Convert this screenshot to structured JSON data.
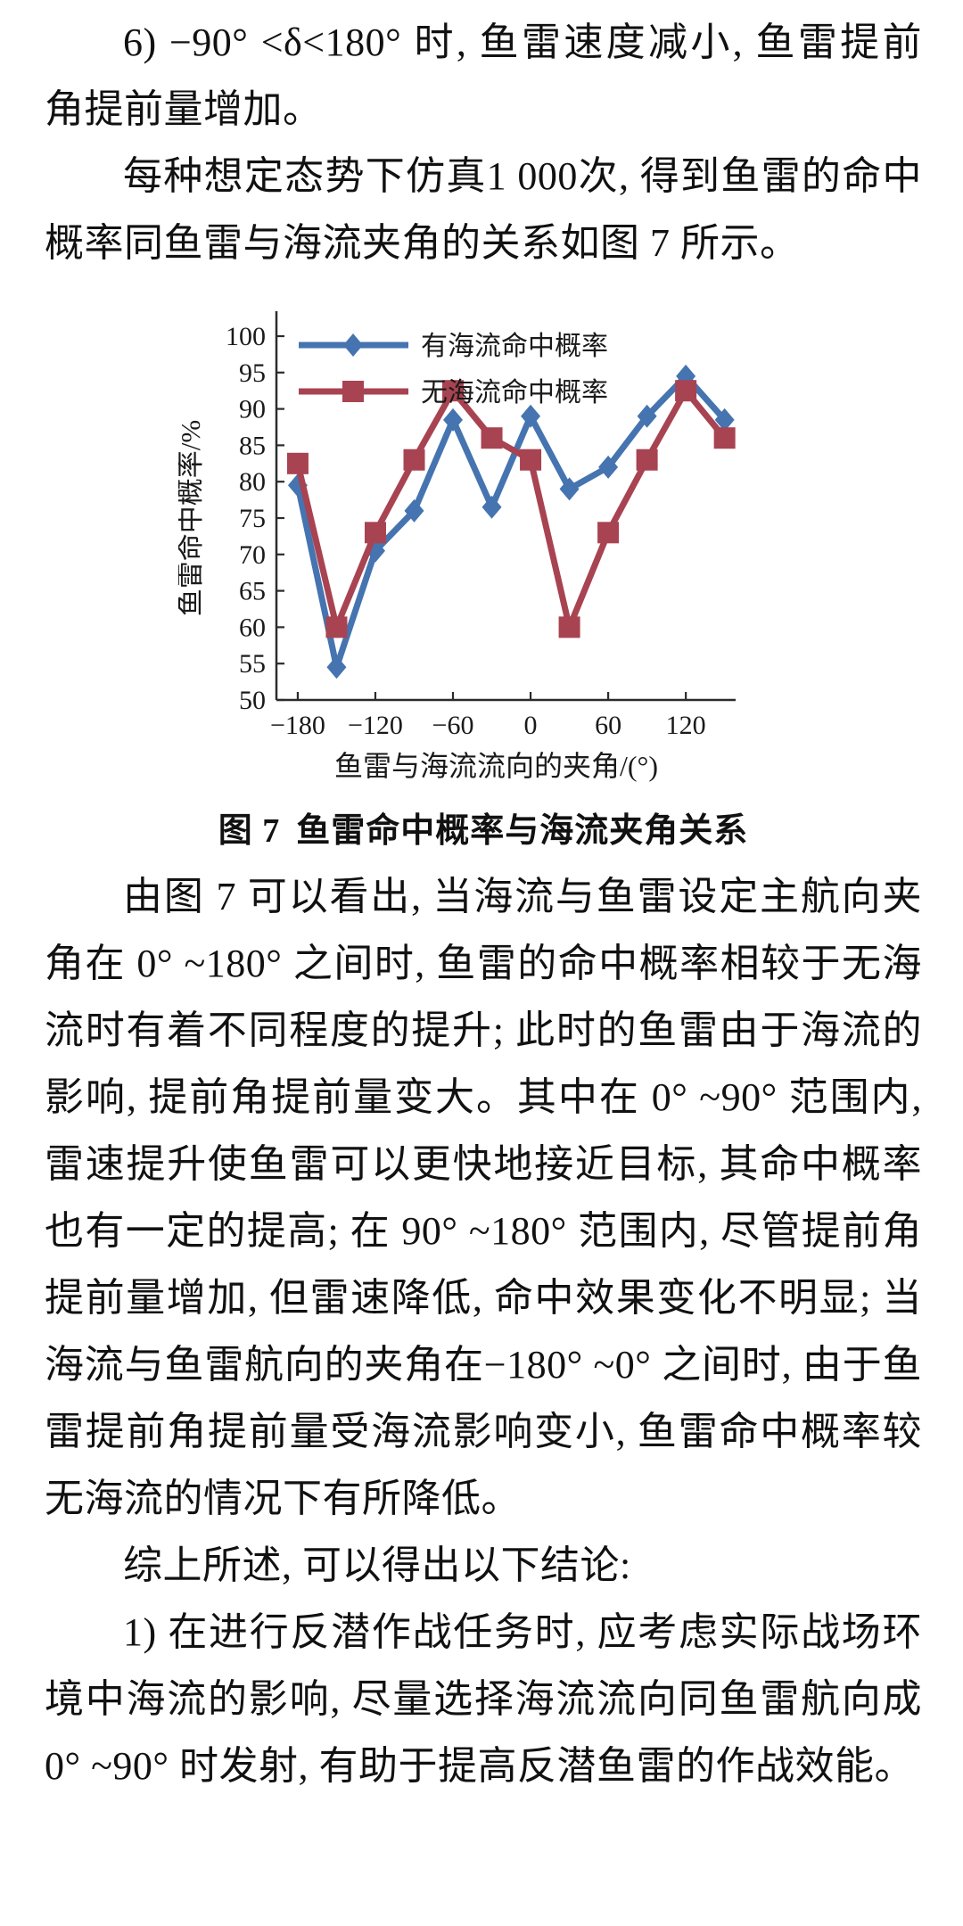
{
  "paragraphs": {
    "p1": "6) −90° <δ<180° 时, 鱼雷速度减小, 鱼雷提前角提前量增加。",
    "p2": "每种想定态势下仿真1 000次, 得到鱼雷的命中概率同鱼雷与海流夹角的关系如图 7 所示。",
    "p3": "由图 7 可以看出, 当海流与鱼雷设定主航向夹角在 0° ~180° 之间时, 鱼雷的命中概率相较于无海流时有着不同程度的提升; 此时的鱼雷由于海流的影响, 提前角提前量变大。其中在 0° ~90° 范围内, 雷速提升使鱼雷可以更快地接近目标, 其命中概率也有一定的提高; 在 90° ~180° 范围内, 尽管提前角提前量增加, 但雷速降低, 命中效果变化不明显; 当海流与鱼雷航向的夹角在−180° ~0° 之间时, 由于鱼雷提前角提前量受海流影响变小, 鱼雷命中概率较无海流的情况下有所降低。",
    "p4": "综上所述, 可以得出以下结论:",
    "p5": "1) 在进行反潜作战任务时, 应考虑实际战场环境中海流的影响, 尽量选择海流流向同鱼雷航向成 0° ~90° 时发射, 有助于提高反潜鱼雷的作战效能。"
  },
  "figure_caption": {
    "label": "图 7",
    "title": "鱼雷命中概率与海流夹角关系"
  },
  "chart_data": {
    "type": "line",
    "title": "",
    "xlabel": "鱼雷与海流流向的夹角/(°)",
    "ylabel": "鱼雷命中概率/%",
    "x": [
      -180,
      -150,
      -120,
      -90,
      -60,
      -30,
      0,
      30,
      60,
      90,
      120,
      150
    ],
    "series": [
      {
        "name": "有海流命中概率",
        "color": "#4574b0",
        "marker": "diamond",
        "values": [
          79.5,
          54.5,
          70.5,
          76,
          88.5,
          76.5,
          89,
          79,
          82,
          89,
          94.5,
          88.5
        ]
      },
      {
        "name": "无海流命中概率",
        "color": "#a84352",
        "marker": "square",
        "values": [
          82.5,
          60,
          73,
          83,
          92.5,
          86,
          83,
          60,
          73,
          83,
          92.5,
          86
        ]
      }
    ],
    "ylim": [
      50,
      100
    ],
    "ytick_step": 5,
    "xticks": [
      -180,
      -120,
      -60,
      0,
      60,
      120
    ],
    "xlim": [
      -196.5,
      153
    ],
    "grid": false,
    "legend_position": "top-left",
    "axis_color": "#2b2b2b",
    "text_color": "#1a1a1a"
  }
}
